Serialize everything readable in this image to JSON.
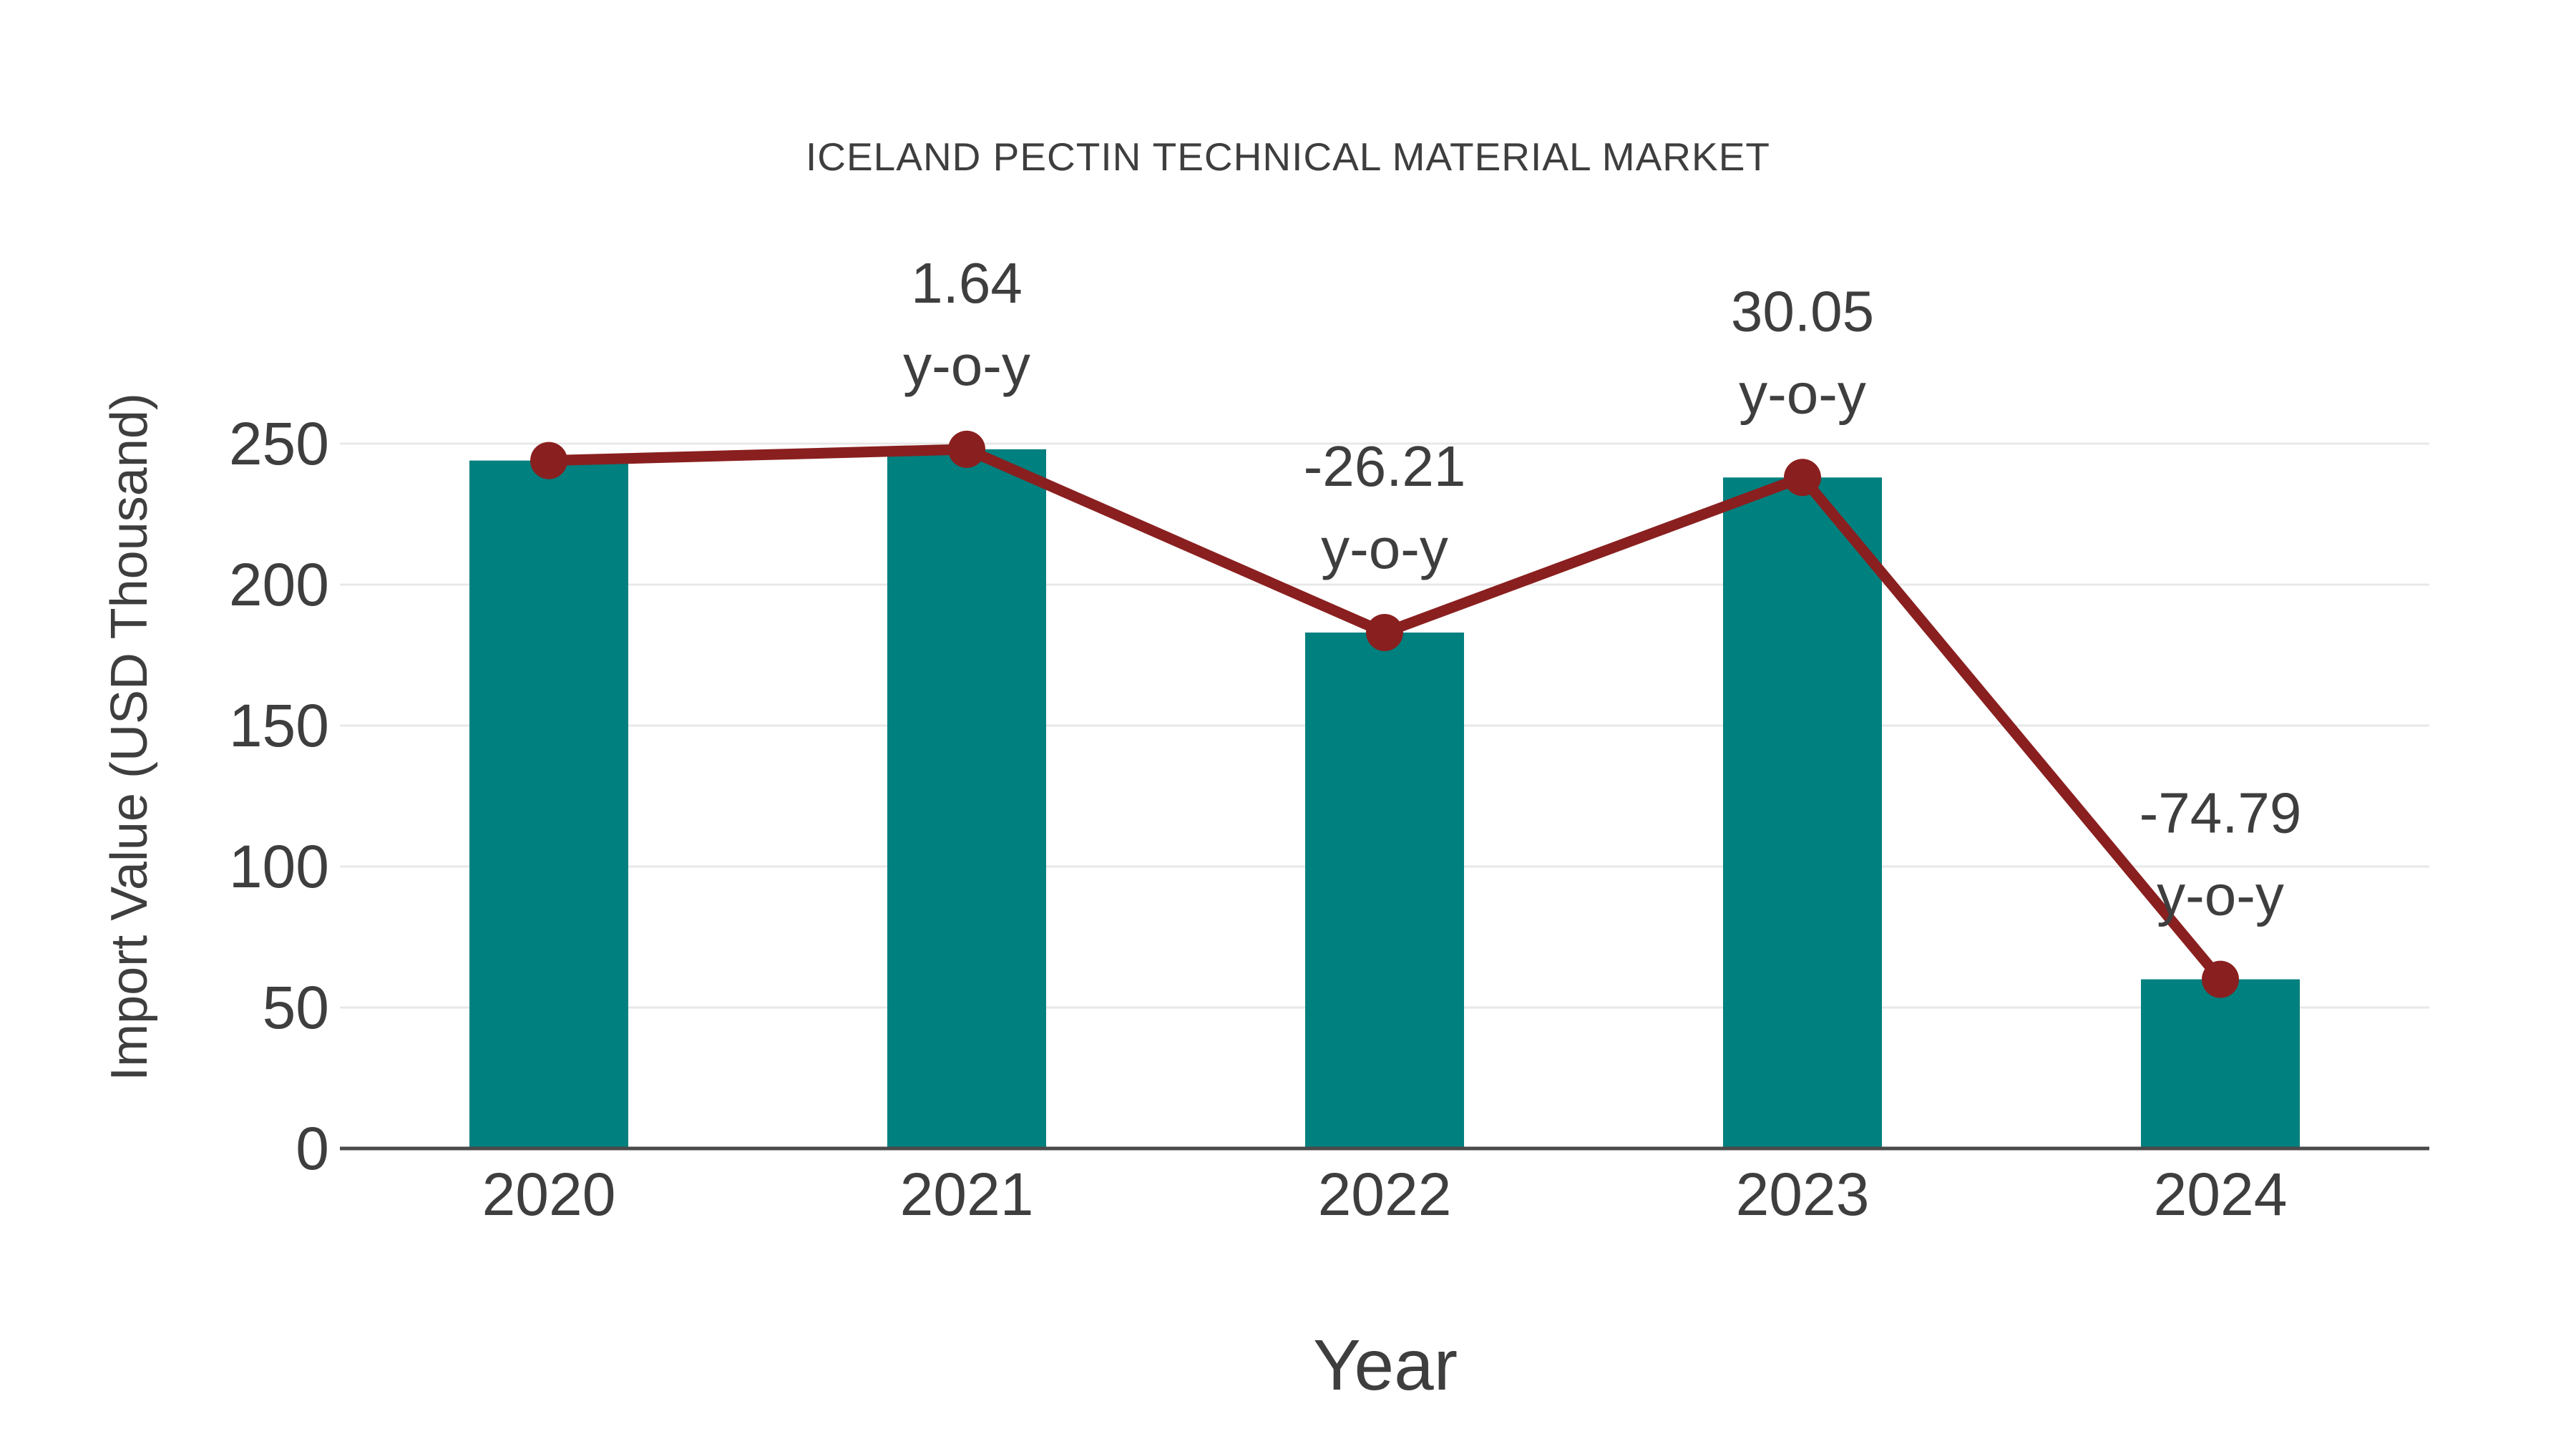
{
  "chart_data": {
    "type": "bar",
    "title": "ICELAND PECTIN TECHNICAL MATERIAL MARKET",
    "xlabel": "Year",
    "ylabel": "Import Value (USD Thousand)",
    "categories": [
      "2020",
      "2021",
      "2022",
      "2023",
      "2024"
    ],
    "series": [
      {
        "name": "Import Value (USD Thousand)",
        "type": "bar",
        "values": [
          244,
          248,
          183,
          238,
          60
        ],
        "color": "#00807E"
      },
      {
        "name": "Import Value trend line",
        "type": "line",
        "values": [
          244,
          248,
          183,
          238,
          60
        ],
        "color": "#8A1F1F"
      }
    ],
    "annotations": [
      {
        "category": "2021",
        "value": "1.64",
        "label": "y-o-y"
      },
      {
        "category": "2022",
        "value": "-26.21",
        "label": "y-o-y"
      },
      {
        "category": "2023",
        "value": "30.05",
        "label": "y-o-y"
      },
      {
        "category": "2024",
        "value": "-74.79",
        "label": "y-o-y"
      }
    ],
    "yticks": [
      0,
      50,
      100,
      150,
      200,
      250
    ],
    "ylim": [
      0,
      250
    ],
    "grid": true,
    "legend_position": "none"
  },
  "colors": {
    "bar": "#00807E",
    "line": "#8A1F1F",
    "text": "#3E3E3E",
    "gridline": "#E8E8E8",
    "axis": "#4A4A4A",
    "background": "#FFFFFF"
  }
}
